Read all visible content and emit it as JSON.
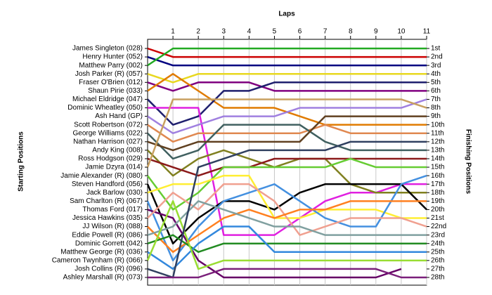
{
  "chart_data": {
    "type": "line",
    "x_label": "Laps",
    "y_label": "Starting Positions",
    "y2_label": "Finishing Positions",
    "x": [
      0,
      1,
      2,
      3,
      4,
      5,
      6,
      7,
      8,
      9,
      10,
      11
    ],
    "xlim": [
      0,
      11
    ],
    "xticks": [
      1,
      2,
      3,
      4,
      5,
      6,
      7,
      8,
      9,
      10,
      11
    ],
    "ylim": [
      1,
      28
    ],
    "y_inverted": true,
    "grid": true,
    "y2lim": [
      1,
      28
    ],
    "y2ticks": [
      {
        "value": 1,
        "label": "1st"
      },
      {
        "value": 2,
        "label": "2nd"
      },
      {
        "value": 3,
        "label": "3rd"
      },
      {
        "value": 4,
        "label": "4th"
      },
      {
        "value": 5,
        "label": "5th"
      },
      {
        "value": 6,
        "label": "6th"
      },
      {
        "value": 7,
        "label": "7th"
      },
      {
        "value": 8,
        "label": "8th"
      },
      {
        "value": 9,
        "label": "9th"
      },
      {
        "value": 10,
        "label": "10th"
      },
      {
        "value": 11,
        "label": "11th"
      },
      {
        "value": 12,
        "label": "12th"
      },
      {
        "value": 13,
        "label": "13th"
      },
      {
        "value": 14,
        "label": "14th"
      },
      {
        "value": 15,
        "label": "15th"
      },
      {
        "value": 16,
        "label": "16th"
      },
      {
        "value": 17,
        "label": "17th"
      },
      {
        "value": 18,
        "label": "18th"
      },
      {
        "value": 19,
        "label": "19th"
      },
      {
        "value": 20,
        "label": "20th"
      },
      {
        "value": 21,
        "label": "21st"
      },
      {
        "value": 22,
        "label": "22nd"
      },
      {
        "value": 23,
        "label": "23rd"
      },
      {
        "value": 24,
        "label": "24th"
      },
      {
        "value": 25,
        "label": "25th"
      },
      {
        "value": 26,
        "label": "26th"
      },
      {
        "value": 27,
        "label": "27th"
      },
      {
        "value": 28,
        "label": "28th"
      }
    ],
    "series": [
      {
        "name": "James Singleton (028)",
        "color": "#cc0000",
        "values": [
          1,
          2,
          2,
          2,
          2,
          2,
          2,
          2,
          2,
          2,
          2,
          2
        ]
      },
      {
        "name": "Henry Hunter (052)",
        "color": "#000080",
        "values": [
          2,
          3,
          3,
          3,
          3,
          3,
          3,
          3,
          3,
          3,
          3,
          3
        ]
      },
      {
        "name": "Matthew Parry (002)",
        "color": "#22aa22",
        "values": [
          3,
          1,
          1,
          1,
          1,
          1,
          1,
          1,
          1,
          1,
          1,
          1
        ]
      },
      {
        "name": "Josh Parker (R) (057)",
        "color": "#e8d820",
        "values": [
          4,
          5,
          4,
          4,
          4,
          4,
          4,
          4,
          4,
          4,
          4,
          4
        ]
      },
      {
        "name": "Fraser O'Brien (012)",
        "color": "#800080",
        "values": [
          5,
          6,
          5,
          5,
          5,
          6,
          6,
          6,
          6,
          6,
          6,
          6
        ]
      },
      {
        "name": "Shaun Pirie (033)",
        "color": "#e07b00",
        "values": [
          6,
          4,
          6,
          8,
          8,
          8,
          9,
          10,
          10,
          10,
          10,
          10
        ]
      },
      {
        "name": "Michael Eldridge (047)",
        "color": "#1f1f6e",
        "values": [
          7,
          10,
          9,
          6,
          6,
          5,
          5,
          5,
          5,
          5,
          5,
          5
        ]
      },
      {
        "name": "Dominic Wheatley (050)",
        "color": "#e020e0",
        "values": [
          8,
          8,
          8,
          23,
          23,
          23,
          21,
          19,
          18,
          18,
          17,
          17
        ]
      },
      {
        "name": "Ash Hand (GP)",
        "color": "#a080e0",
        "values": [
          9,
          11,
          10,
          9,
          9,
          9,
          8,
          8,
          8,
          8,
          8,
          7
        ]
      },
      {
        "name": "Scott Robertson (072)",
        "color": "#e08850",
        "values": [
          10,
          12,
          11,
          11,
          11,
          11,
          11,
          10,
          11,
          11,
          11,
          11
        ]
      },
      {
        "name": "George Williams (022)",
        "color": "#406060",
        "values": [
          11,
          14,
          13,
          10,
          10,
          10,
          10,
          12,
          13,
          13,
          13,
          13
        ]
      },
      {
        "name": "Nathan Harrison (027)",
        "color": "#604020",
        "values": [
          12,
          13,
          12,
          12,
          12,
          12,
          12,
          9,
          9,
          9,
          9,
          9
        ]
      },
      {
        "name": "Andy King (008)",
        "color": "#808020",
        "values": [
          13,
          16,
          14,
          13,
          14,
          15,
          14,
          14,
          17,
          18,
          18,
          18
        ]
      },
      {
        "name": "Ross Hodgson (029)",
        "color": "#8b1a1a",
        "values": [
          14,
          15,
          16,
          15,
          15,
          14,
          14,
          14,
          14,
          14,
          14,
          14
        ]
      },
      {
        "name": "Jamie Dzyra (014)",
        "color": "#c8a060",
        "values": [
          15,
          7,
          7,
          7,
          7,
          7,
          7,
          7,
          7,
          7,
          7,
          8
        ]
      },
      {
        "name": "Jamie Alexander (R) (080)",
        "color": "#66cc33",
        "values": [
          16,
          20,
          18,
          15,
          15,
          15,
          15,
          15,
          14,
          15,
          15,
          15
        ]
      },
      {
        "name": "Steven Handford (056)",
        "color": "#000000",
        "values": [
          17,
          24,
          21,
          19,
          19,
          20,
          18,
          17,
          17,
          17,
          17,
          20
        ]
      },
      {
        "name": "Jack Barlow (030)",
        "color": "#ffee33",
        "values": [
          18,
          17,
          17,
          16,
          16,
          21,
          21,
          20,
          20,
          20,
          21,
          21
        ]
      },
      {
        "name": "Sam Charlton (R) (067)",
        "color": "#4490e0",
        "values": [
          19,
          26,
          22,
          19,
          18,
          17,
          19,
          21,
          22,
          22,
          17,
          16
        ]
      },
      {
        "name": "Thomas Ford (017)",
        "color": "#660066",
        "values": [
          20,
          21,
          26,
          28,
          28,
          28,
          28,
          28,
          28,
          28,
          27,
          null
        ]
      },
      {
        "name": "Jessica Hawkins (035)",
        "color": "#f0a090",
        "values": [
          21,
          18,
          20,
          17,
          17,
          19,
          23,
          22,
          21,
          21,
          21,
          22
        ]
      },
      {
        "name": "JJ Wilson (R) (088)",
        "color": "#ff8020",
        "values": [
          22,
          25,
          23,
          21,
          20,
          21,
          20,
          20,
          19,
          19,
          19,
          19
        ]
      },
      {
        "name": "Eddie Powell (R) (086)",
        "color": "#80a0a0",
        "values": [
          23,
          22,
          19,
          20,
          21,
          22,
          22,
          23,
          23,
          23,
          23,
          23
        ]
      },
      {
        "name": "Dominic Gorrett (042)",
        "color": "#228b22",
        "values": [
          24,
          23,
          25,
          24,
          24,
          24,
          24,
          24,
          24,
          24,
          24,
          24
        ]
      },
      {
        "name": "Matthew George (R) (036)",
        "color": "#3388dd",
        "values": [
          25,
          27,
          24,
          22,
          22,
          25,
          25,
          25,
          25,
          25,
          25,
          25
        ]
      },
      {
        "name": "Cameron Twynham (R) (066)",
        "color": "#99dd33",
        "values": [
          26,
          19,
          27,
          26,
          26,
          26,
          26,
          26,
          26,
          26,
          26,
          26
        ]
      },
      {
        "name": "Josh Collins (R) (096)",
        "color": "#304060",
        "values": [
          27,
          28,
          15,
          14,
          13,
          13,
          13,
          13,
          12,
          12,
          12,
          12
        ]
      },
      {
        "name": "Ashley Marshall (R) (073)",
        "color": "#7a1f7a",
        "values": [
          28,
          28,
          28,
          27,
          27,
          27,
          27,
          27,
          27,
          27,
          28,
          28
        ]
      }
    ]
  }
}
